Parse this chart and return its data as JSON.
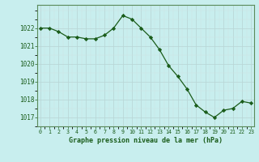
{
  "x": [
    0,
    1,
    2,
    3,
    4,
    5,
    6,
    7,
    8,
    9,
    10,
    11,
    12,
    13,
    14,
    15,
    16,
    17,
    18,
    19,
    20,
    21,
    22,
    23
  ],
  "y": [
    1022.0,
    1022.0,
    1021.8,
    1021.5,
    1021.5,
    1021.4,
    1021.4,
    1021.6,
    1022.0,
    1022.7,
    1022.5,
    1022.0,
    1021.5,
    1020.8,
    1019.9,
    1019.3,
    1018.6,
    1017.7,
    1017.3,
    1017.0,
    1017.4,
    1017.5,
    1017.9,
    1017.8
  ],
  "line_color": "#1a5c1a",
  "marker": "D",
  "marker_size": 2.2,
  "bg_color": "#c8eeee",
  "grid_major_color": "#b0c8c8",
  "grid_minor_color": "#d8e8e8",
  "xlabel": "Graphe pression niveau de la mer (hPa)",
  "xlabel_color": "#1a5c1a",
  "tick_color": "#1a5c1a",
  "ylim": [
    1016.5,
    1023.3
  ],
  "xlim": [
    -0.3,
    23.3
  ],
  "yticks": [
    1017,
    1018,
    1019,
    1020,
    1021,
    1022
  ],
  "xticks": [
    0,
    1,
    2,
    3,
    4,
    5,
    6,
    7,
    8,
    9,
    10,
    11,
    12,
    13,
    14,
    15,
    16,
    17,
    18,
    19,
    20,
    21,
    22,
    23
  ]
}
